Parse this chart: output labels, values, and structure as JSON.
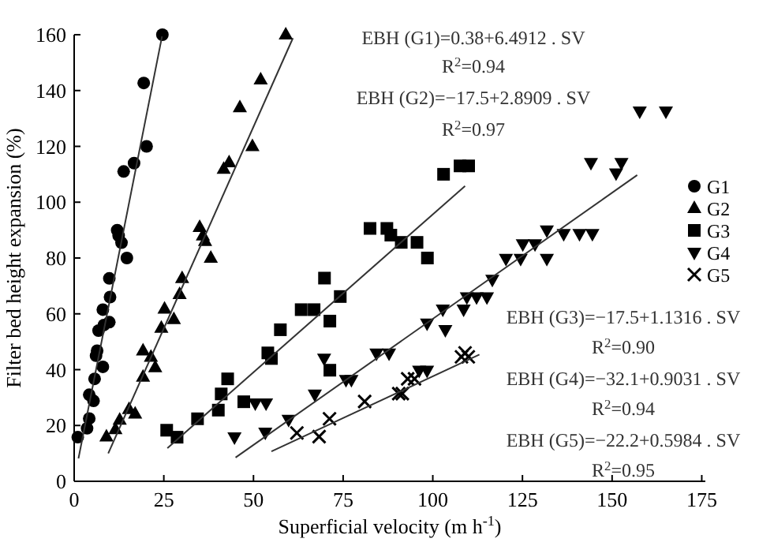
{
  "chart_data": {
    "type": "scatter",
    "xlabel": "Superficial velocity (m h$^{-1}$)",
    "ylabel": "Filter bed height expansion (%)",
    "xlim": [
      0,
      176
    ],
    "ylim": [
      0,
      160
    ],
    "xticks": [
      0,
      25,
      50,
      75,
      100,
      125,
      150,
      175
    ],
    "yticks": [
      0,
      20,
      40,
      60,
      80,
      100,
      120,
      140,
      160
    ],
    "grid": false,
    "legend": "right",
    "series": [
      {
        "name": "G1",
        "color": "#000000",
        "marker": "circle",
        "x": [
          1,
          3.6,
          4.2,
          4.2,
          5.4,
          5.7,
          6.1,
          6.4,
          8,
          6.8,
          8.3,
          9.8,
          8,
          10,
          9.8,
          12,
          12.4,
          13.2,
          14.7,
          13.8,
          16.7,
          20.2,
          19.4,
          24.6
        ],
        "values": [
          15.8,
          19,
          22.5,
          31,
          28.8,
          36.7,
          45,
          46.8,
          41,
          54,
          56,
          57,
          61.5,
          66,
          72.7,
          90,
          88,
          85.5,
          80,
          111,
          114,
          120,
          142.7,
          160
        ]
      },
      {
        "name": "G2",
        "color": "#000000",
        "marker": "triangle",
        "x": [
          9,
          11.5,
          12.7,
          15.3,
          17,
          19.2,
          19.2,
          21.4,
          22.6,
          24.3,
          25.2,
          27.8,
          29.4,
          30.1,
          35,
          35.9,
          36.5,
          38.1,
          41.7,
          43.2,
          49.7,
          46.2,
          52,
          59
        ],
        "values": [
          16,
          18.6,
          22,
          25.8,
          24.2,
          37.4,
          46.8,
          44.5,
          40.8,
          54.9,
          61.8,
          58,
          67,
          72.7,
          91,
          88,
          86,
          80,
          111.9,
          114.2,
          120,
          133.9,
          143.9,
          160
        ]
      },
      {
        "name": "G3",
        "color": "#000000",
        "marker": "square",
        "x": [
          25.8,
          28.7,
          34.4,
          40.2,
          42.8,
          41,
          47.3,
          54,
          55,
          57.5,
          63.3,
          66.9,
          71.3,
          69.8,
          74.2,
          71.3,
          82.5,
          87.2,
          88.3,
          91.2,
          95.6,
          98.5,
          103,
          107.6,
          110
        ],
        "values": [
          18.3,
          15.8,
          22.4,
          25.5,
          36.7,
          31.3,
          28.5,
          46,
          44,
          54.3,
          61.5,
          61.5,
          57.4,
          72.8,
          66.2,
          39.8,
          90.6,
          90.6,
          88.2,
          85.6,
          85.6,
          80,
          110,
          113,
          113
        ]
      },
      {
        "name": "G4",
        "color": "#000000",
        "marker": "triangle-down",
        "x": [
          44.7,
          50.5,
          53.5,
          53.3,
          59.8,
          67.1,
          69.7,
          75.8,
          77.3,
          84.3,
          87.8,
          96.2,
          98.4,
          98.4,
          103.5,
          102.8,
          108.6,
          109.5,
          112.2,
          115.1,
          116.6,
          120.4,
          124.5,
          125.1,
          128.5,
          131.8,
          131.8,
          136.5,
          140.9,
          144.5,
          144.1,
          151.1,
          152.6,
          157.7,
          165
        ],
        "values": [
          15.8,
          28,
          28,
          17.5,
          22.1,
          31.2,
          44,
          36.4,
          36.4,
          45.9,
          45.9,
          39.7,
          39.7,
          56.6,
          54.3,
          61.6,
          61.6,
          66,
          66,
          66,
          72.3,
          79.8,
          79.8,
          85,
          85,
          79.8,
          90,
          88.7,
          88.7,
          88.7,
          114.1,
          110.4,
          114.1,
          132.6,
          132.6
        ]
      },
      {
        "name": "G5",
        "color": "#000000",
        "marker": "cross",
        "x": [
          62.1,
          68.3,
          71.2,
          81,
          90.5,
          91.5,
          93,
          94.9,
          108,
          109,
          109.9
        ],
        "values": [
          17.3,
          16,
          22.4,
          28.6,
          31.4,
          31.4,
          36.7,
          36.7,
          44.6,
          46,
          44.6
        ]
      },
      {
        "type": "line",
        "color": "#333333",
        "x": [
          1.2,
          24.5
        ],
        "values": [
          8.2,
          159.4
        ]
      },
      {
        "type": "line",
        "color": "#333333",
        "x": [
          9.5,
          61
        ],
        "values": [
          10,
          158.8
        ]
      },
      {
        "type": "line",
        "color": "#333333",
        "x": [
          26,
          109
        ],
        "values": [
          11.9,
          105.8
        ]
      },
      {
        "type": "line",
        "color": "#333333",
        "x": [
          45,
          157
        ],
        "values": [
          8.5,
          109.7
        ]
      },
      {
        "type": "line",
        "color": "#333333",
        "x": [
          55,
          113
        ],
        "values": [
          10.7,
          45.4
        ]
      }
    ],
    "annotations": [
      "EBH (G1)=0.38+6.4912 . SV",
      "R$^{2}$=0.94",
      "EBH (G2)=−17.5+2.8909 . SV",
      "R$^{2}$=0.97",
      "EBH (G3)=−17.5+1.1316 . SV",
      "R$^{2}$=0.90",
      "EBH (G4)=−32.1+0.9031 . SV",
      "R$^{2}$=0.94",
      "EBH (G5)=−22.2+0.5984 . SV",
      "R$^{2}$=0.95"
    ]
  }
}
